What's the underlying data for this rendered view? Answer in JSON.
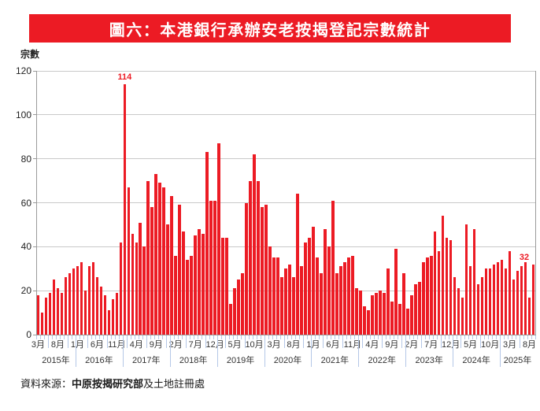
{
  "banner": {
    "title": "圖六：本港銀行承辦安老按揭登記宗數統計",
    "bg_color": "#EC1B24",
    "text_color": "#FFFFFF"
  },
  "y_axis": {
    "title": "宗數",
    "ticks": [
      0,
      20,
      40,
      60,
      80,
      100,
      120
    ]
  },
  "source": {
    "prefix": "資料來源：",
    "bold": "中原按揭研究部",
    "suffix": "及土地註冊處"
  },
  "chart_data": {
    "type": "bar",
    "title": "圖六：本港銀行承辦安老按揭登記宗數統計",
    "ylabel": "宗數",
    "ylim": [
      0,
      120
    ],
    "ytick_interval": 20,
    "grid": true,
    "bar_color": "#EC1B24",
    "annotation_color": "#EC1B24",
    "x_tick_every": 5,
    "x_tick_labels": [
      "3月",
      "8月",
      "1月",
      "6月",
      "11月",
      "4月",
      "9月",
      "2月",
      "7月",
      "12月",
      "5月",
      "10月",
      "3月",
      "8月",
      "1月",
      "6月",
      "11月",
      "4月",
      "9月",
      "2月",
      "7月",
      "12月",
      "5月",
      "10月",
      "3月",
      "8月"
    ],
    "years": [
      {
        "label": "2015年",
        "first_month": 3,
        "values": [
          18,
          10,
          17,
          19,
          25,
          21,
          19,
          26,
          28,
          30
        ]
      },
      {
        "label": "2016年",
        "first_month": 1,
        "values": [
          31,
          33,
          20,
          31,
          33,
          26,
          22,
          18,
          11,
          16,
          19,
          42
        ]
      },
      {
        "label": "2017年",
        "first_month": 1,
        "values": [
          114,
          67,
          46,
          42,
          51,
          40,
          70,
          58,
          73,
          69,
          67,
          50
        ]
      },
      {
        "label": "2018年",
        "first_month": 1,
        "values": [
          63,
          36,
          59,
          47,
          34,
          36,
          45,
          48,
          46,
          83,
          61,
          61
        ]
      },
      {
        "label": "2019年",
        "first_month": 1,
        "values": [
          87,
          44,
          44,
          14,
          21,
          25,
          28,
          60,
          70,
          82,
          70,
          58
        ]
      },
      {
        "label": "2020年",
        "first_month": 1,
        "values": [
          59,
          40,
          35,
          35,
          26,
          30,
          32,
          26,
          64,
          31,
          42,
          44
        ]
      },
      {
        "label": "2021年",
        "first_month": 1,
        "values": [
          49,
          35,
          28,
          48,
          40,
          61,
          28,
          31,
          33,
          35,
          36,
          21
        ]
      },
      {
        "label": "2022年",
        "first_month": 1,
        "values": [
          20,
          13,
          11,
          18,
          19,
          20,
          19,
          30,
          15,
          39,
          14,
          28
        ]
      },
      {
        "label": "2023年",
        "first_month": 1,
        "values": [
          12,
          18,
          23,
          24,
          33,
          35,
          36,
          47,
          38,
          54,
          44,
          43
        ]
      },
      {
        "label": "2024年",
        "first_month": 1,
        "values": [
          26,
          21,
          17,
          50,
          31,
          48,
          23,
          26,
          30,
          30,
          32,
          33
        ]
      },
      {
        "label": "2025年",
        "first_month": 1,
        "values": [
          34,
          30,
          38,
          25,
          29,
          31,
          33,
          17,
          32
        ]
      }
    ],
    "annotations": [
      {
        "text": "114",
        "index": 22
      },
      {
        "text": "32",
        "index": 126
      }
    ]
  }
}
